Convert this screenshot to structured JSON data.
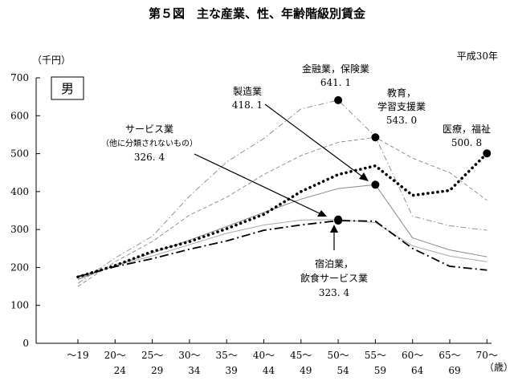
{
  "chart_data": {
    "type": "line",
    "title": "第５図　主な産業、性、年齢階級別賃金",
    "year_note": "平成30年",
    "unit_label": "（千円）",
    "x_unit": "（歳）",
    "gender_label": "男",
    "ylim": [
      0,
      700
    ],
    "yticks": [
      "0",
      "100",
      "200",
      "300",
      "400",
      "500",
      "600",
      "700"
    ],
    "categories": [
      "〜19",
      "20〜24",
      "25〜29",
      "30〜34",
      "35〜39",
      "40〜44",
      "45〜49",
      "50〜54",
      "55〜59",
      "60〜64",
      "65〜69",
      "70〜"
    ],
    "x_tick_top": [
      "〜19",
      "20〜",
      "25〜",
      "30〜",
      "35〜",
      "40〜",
      "45〜",
      "50〜",
      "55〜",
      "60〜",
      "65〜",
      "70〜"
    ],
    "x_tick_bottom": [
      "",
      "24",
      "29",
      "34",
      "39",
      "44",
      "49",
      "54",
      "59",
      "64",
      "69",
      ""
    ],
    "series": [
      {
        "values": [
          158,
          225,
          282,
          388,
          478,
          540,
          618,
          641.1,
          545,
          335,
          310,
          298
        ],
        "color": "#888888",
        "style": "dashdot-thin"
      },
      {
        "values": [
          150,
          215,
          268,
          338,
          385,
          445,
          495,
          530,
          543.0,
          488,
          450,
          377
        ],
        "color": "#888888",
        "style": "dash-thin"
      },
      {
        "values": [
          168,
          205,
          238,
          272,
          308,
          345,
          380,
          408,
          418.1,
          278,
          246,
          228
        ],
        "color": "#888888",
        "style": "solid-thin"
      },
      {
        "values": [
          171,
          205,
          230,
          260,
          290,
          312,
          325,
          326.4,
          318,
          257,
          230,
          215
        ],
        "color": "#aaaaaa",
        "style": "solid-light"
      },
      {
        "values": [
          175,
          205,
          242,
          268,
          302,
          340,
          400,
          445,
          468,
          390,
          403,
          500.8
        ],
        "color": "#000000",
        "style": "dotted-bold"
      },
      {
        "values": [
          176,
          202,
          223,
          248,
          270,
          298,
          312,
          323.4,
          322,
          250,
          203,
          193
        ],
        "color": "#000000",
        "style": "dashdot-bold"
      }
    ],
    "annotations": [
      {
        "lines": [
          "金融業，保険業",
          "641. 1"
        ]
      },
      {
        "lines": [
          "製造業",
          "418. 1"
        ]
      },
      {
        "lines": [
          "教育，",
          "学習支援業",
          "543. 0"
        ]
      },
      {
        "lines": [
          "医療，福祉",
          "500. 8"
        ]
      },
      {
        "lines": [
          "サービス業",
          "（他に分類されないもの）",
          "326. 4"
        ]
      },
      {
        "lines": [
          "宿泊業，",
          "飲食サービス業",
          "323. 4"
        ]
      }
    ]
  }
}
